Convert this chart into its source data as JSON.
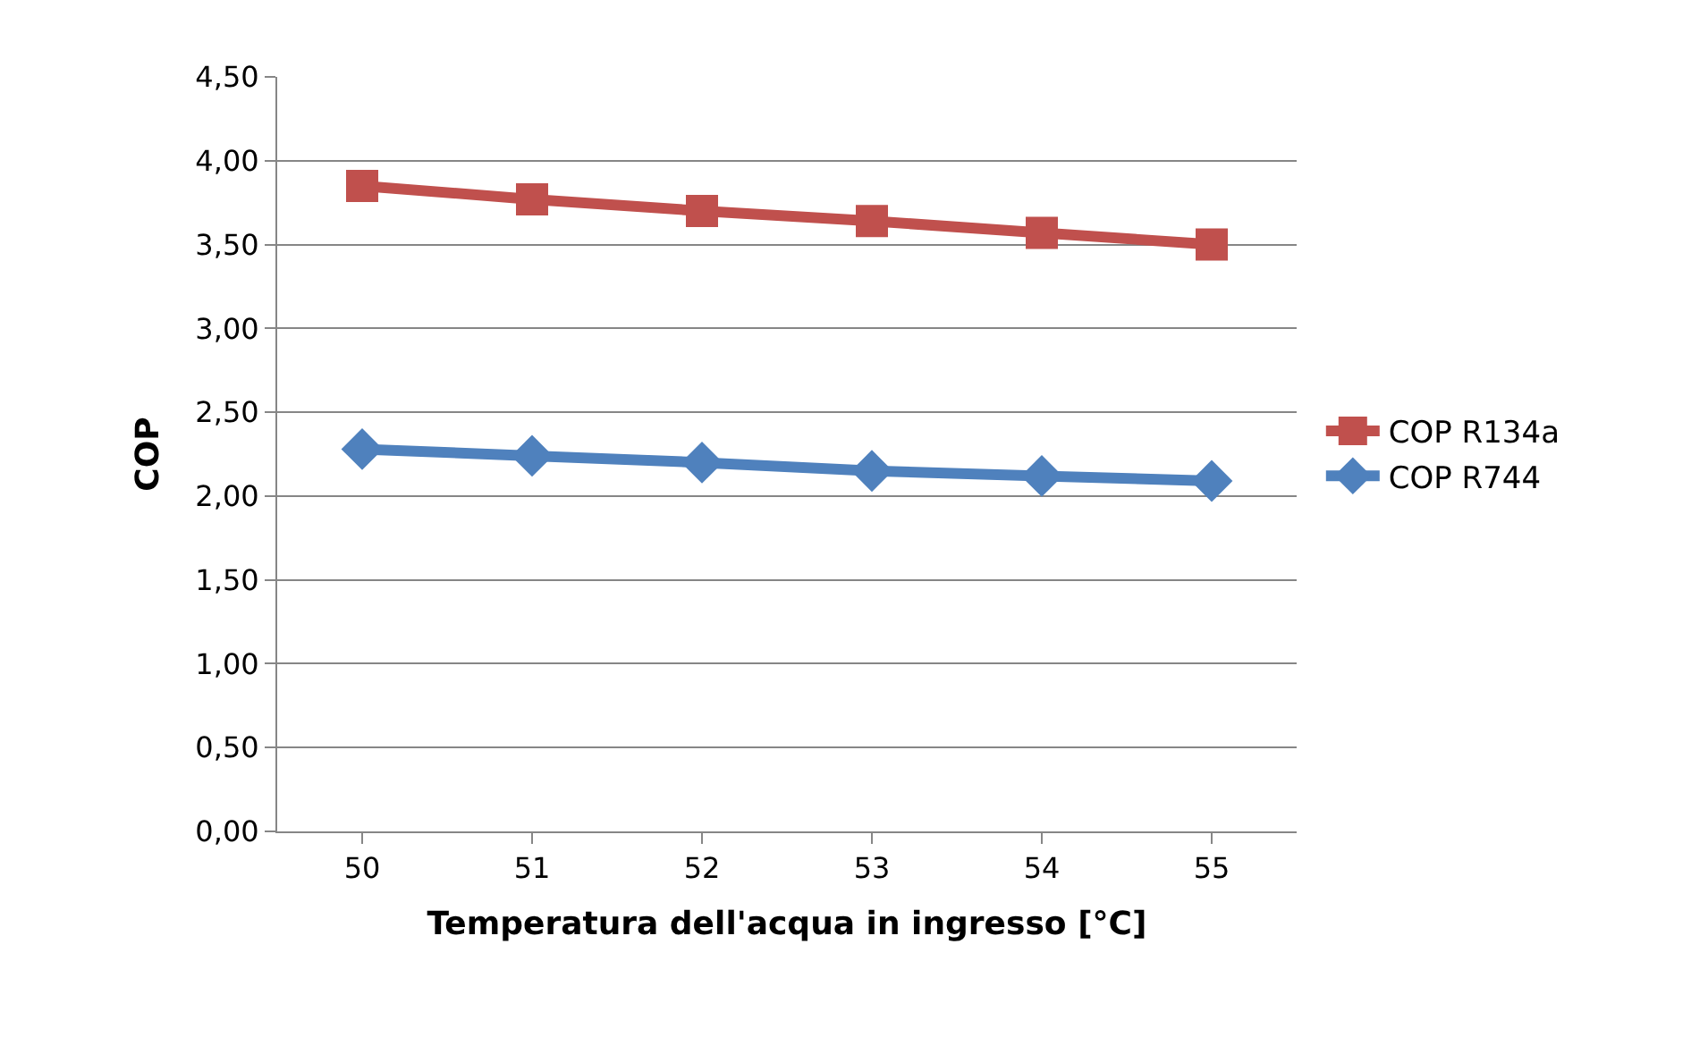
{
  "chart_data": {
    "type": "line",
    "xlabel": "Temperatura dell'acqua in ingresso [°C]",
    "ylabel": "COP",
    "categories": [
      "50",
      "51",
      "52",
      "53",
      "54",
      "55"
    ],
    "series": [
      {
        "name": "COP R134a",
        "color": "#c0504d",
        "marker": "square",
        "values": [
          3.85,
          3.77,
          3.7,
          3.64,
          3.57,
          3.5
        ]
      },
      {
        "name": "COP R744",
        "color": "#4f81bd",
        "marker": "diamond",
        "values": [
          2.28,
          2.24,
          2.2,
          2.15,
          2.12,
          2.09
        ]
      }
    ],
    "ylim": [
      0,
      4.5
    ],
    "yticks": [
      {
        "value": 0,
        "label": "0,00"
      },
      {
        "value": 0.5,
        "label": "0,50"
      },
      {
        "value": 1,
        "label": "1,00"
      },
      {
        "value": 1.5,
        "label": "1,50"
      },
      {
        "value": 2,
        "label": "2,00"
      },
      {
        "value": 2.5,
        "label": "2,50"
      },
      {
        "value": 3,
        "label": "3,00"
      },
      {
        "value": 3.5,
        "label": "3,50"
      },
      {
        "value": 4,
        "label": "4,00"
      },
      {
        "value": 4.5,
        "label": "4,50"
      }
    ],
    "grid": "y",
    "legend": "right",
    "line_style": "solid"
  }
}
